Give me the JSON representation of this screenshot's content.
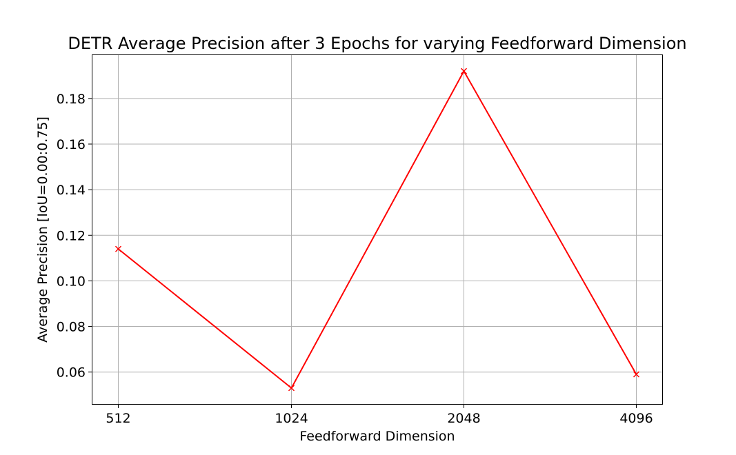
{
  "chart_data": {
    "type": "line",
    "title": "DETR Average Precision after 3 Epochs for varying Feedforward Dimension",
    "xlabel": "Feedforward Dimension",
    "ylabel": "Average Precision [IoU=0.00:0.75]",
    "categories": [
      "512",
      "1024",
      "2048",
      "4096"
    ],
    "series": [
      {
        "values": [
          0.114,
          0.053,
          0.192,
          0.059
        ],
        "color": "#ff0000",
        "marker": "x"
      }
    ],
    "yticks": [
      0.06,
      0.08,
      0.1,
      0.12,
      0.14,
      0.16,
      0.18
    ],
    "ytick_labels": [
      "0.06",
      "0.08",
      "0.10",
      "0.12",
      "0.14",
      "0.16",
      "0.18"
    ],
    "ylim": [
      0.046,
      0.199
    ],
    "grid": true,
    "legend": "none"
  }
}
